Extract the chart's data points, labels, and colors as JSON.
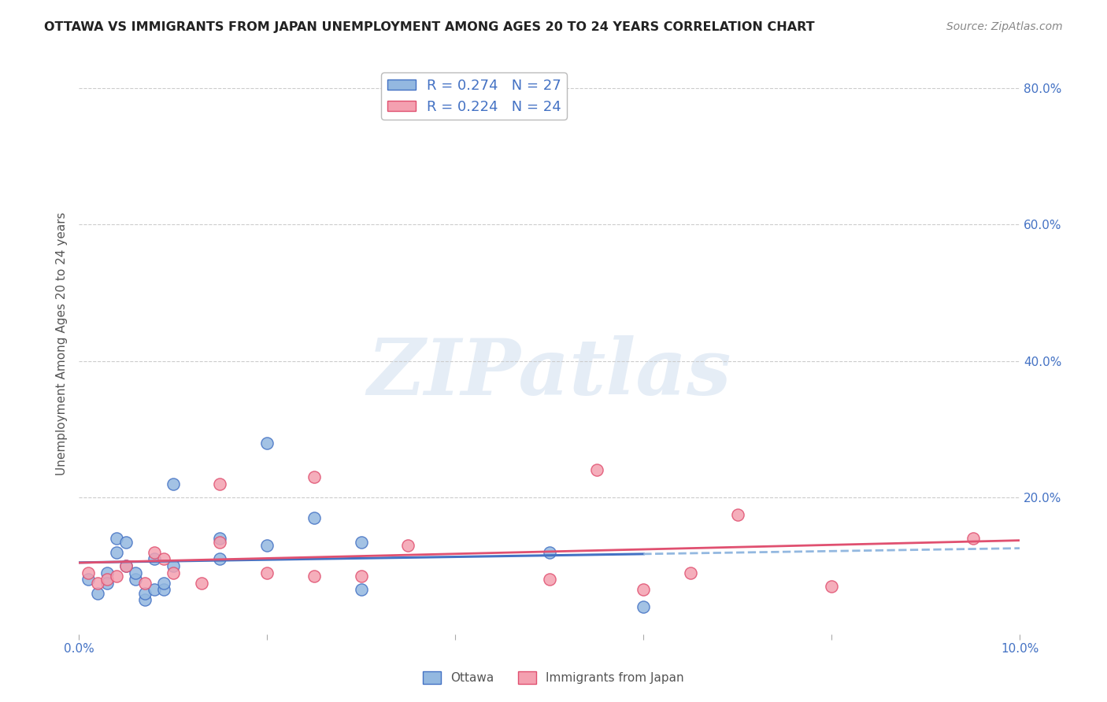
{
  "title": "OTTAWA VS IMMIGRANTS FROM JAPAN UNEMPLOYMENT AMONG AGES 20 TO 24 YEARS CORRELATION CHART",
  "source": "Source: ZipAtlas.com",
  "ylabel": "Unemployment Among Ages 20 to 24 years",
  "xlim": [
    0.0,
    0.1
  ],
  "ylim": [
    0.0,
    0.85
  ],
  "xticks": [
    0.0,
    0.02,
    0.04,
    0.06,
    0.08,
    0.1
  ],
  "xticklabels": [
    "0.0%",
    "",
    "",
    "",
    "",
    "10.0%"
  ],
  "yticks_right": [
    0.0,
    0.2,
    0.4,
    0.6,
    0.8
  ],
  "yticklabels_right": [
    "",
    "20.0%",
    "40.0%",
    "60.0%",
    "80.0%"
  ],
  "ottawa_R": 0.274,
  "ottawa_N": 27,
  "japan_R": 0.224,
  "japan_N": 24,
  "ottawa_color": "#93b8e0",
  "ottawa_color_dark": "#4472c4",
  "japan_color": "#f4a0b0",
  "japan_color_dark": "#e05070",
  "ottawa_x": [
    0.001,
    0.002,
    0.003,
    0.003,
    0.004,
    0.004,
    0.005,
    0.005,
    0.006,
    0.006,
    0.007,
    0.007,
    0.008,
    0.008,
    0.009,
    0.009,
    0.01,
    0.01,
    0.015,
    0.015,
    0.02,
    0.02,
    0.025,
    0.03,
    0.03,
    0.05,
    0.06
  ],
  "ottawa_y": [
    0.08,
    0.06,
    0.09,
    0.075,
    0.12,
    0.14,
    0.1,
    0.135,
    0.08,
    0.09,
    0.05,
    0.06,
    0.065,
    0.11,
    0.065,
    0.075,
    0.1,
    0.22,
    0.14,
    0.11,
    0.13,
    0.28,
    0.17,
    0.135,
    0.065,
    0.12,
    0.04
  ],
  "japan_x": [
    0.001,
    0.002,
    0.003,
    0.004,
    0.005,
    0.007,
    0.008,
    0.009,
    0.01,
    0.013,
    0.015,
    0.015,
    0.02,
    0.025,
    0.025,
    0.03,
    0.035,
    0.05,
    0.055,
    0.06,
    0.065,
    0.07,
    0.08,
    0.095
  ],
  "japan_y": [
    0.09,
    0.075,
    0.08,
    0.085,
    0.1,
    0.075,
    0.12,
    0.11,
    0.09,
    0.075,
    0.135,
    0.22,
    0.09,
    0.085,
    0.23,
    0.085,
    0.13,
    0.08,
    0.24,
    0.065,
    0.09,
    0.175,
    0.07,
    0.14
  ],
  "watermark": "ZIPatlas",
  "background_color": "#ffffff",
  "grid_color": "#cccccc",
  "legend_fontsize": 13,
  "title_fontsize": 11.5,
  "label_color": "#4472c4"
}
